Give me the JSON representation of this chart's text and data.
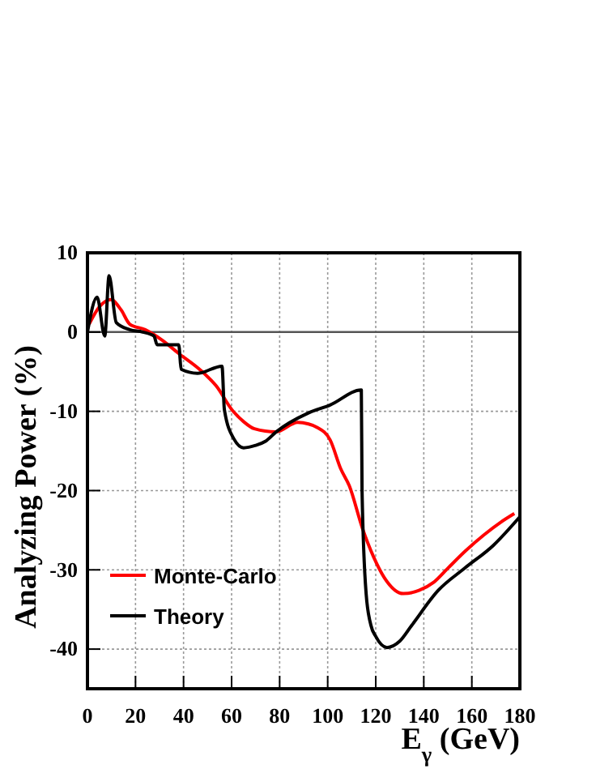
{
  "chart_data": {
    "type": "line",
    "xlabel": "E$_{γ}$ (GeV)",
    "ylabel": "Analyzing Power (%)",
    "xlim": [
      0,
      180
    ],
    "ylim": [
      -45,
      10
    ],
    "xticks": [
      0,
      20,
      40,
      60,
      80,
      100,
      120,
      140,
      160,
      180
    ],
    "yticks": [
      -40,
      -30,
      -20,
      -10,
      0,
      10
    ],
    "grid": true,
    "legend": "bottom left",
    "line_style": "solid",
    "marker": "none",
    "ref_lines": [
      {
        "axis": "y",
        "value": 0,
        "color": "#555555",
        "line_style": "solid"
      }
    ],
    "series": [
      {
        "name": "Monte-Carlo",
        "color": "#ff0000",
        "x": [
          0.7,
          5,
          9.7,
          14,
          17.6,
          24,
          31,
          38,
          47,
          53.6,
          60.4,
          65,
          69.5,
          78.5,
          87.5,
          92,
          95.4,
          101,
          105.5,
          109,
          114.5,
          119,
          123.6,
          131.5,
          138,
          144,
          150,
          157.4,
          165,
          172,
          177.7
        ],
        "values": [
          1,
          3.2,
          4.1,
          2.8,
          1,
          0.3,
          -1,
          -2.7,
          -4.8,
          -6.8,
          -9.9,
          -11.3,
          -12.2,
          -12.6,
          -11.4,
          -11.6,
          -12,
          -13.6,
          -17.3,
          -19.4,
          -24.8,
          -28.3,
          -31,
          -33,
          -32.6,
          -31.6,
          -29.8,
          -27.6,
          -25.6,
          -24,
          -22.9
        ]
      },
      {
        "name": "Theory",
        "color": "#000000",
        "x": [
          0,
          4,
          7.2,
          9,
          12,
          17.6,
          23,
          27.7,
          29,
          38,
          39,
          45.8,
          56,
          57,
          61,
          65,
          70,
          74,
          78.5,
          92,
          101,
          114,
          114.3,
          116,
          118,
          120,
          124.7,
          130,
          135,
          146,
          157,
          169,
          180
        ],
        "values": [
          0,
          4.4,
          -0.5,
          7.1,
          1.2,
          0.3,
          0,
          -0.5,
          -1.6,
          -1.6,
          -4.7,
          -5.2,
          -4.3,
          -9.8,
          -13.5,
          -14.6,
          -14.3,
          -13.8,
          -12.6,
          -10.2,
          -9.2,
          -7.3,
          -20,
          -33,
          -37,
          -38.4,
          -39.8,
          -39,
          -37,
          -32.6,
          -29.8,
          -26.9,
          -23.3
        ]
      }
    ]
  }
}
